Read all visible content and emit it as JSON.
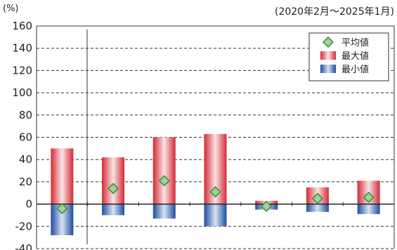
{
  "chart_data": {
    "type": "bar",
    "unit_label": "(%)",
    "period_label": "(2020年2月〜2025年1月)",
    "ylim": [
      -40,
      160
    ],
    "yticks": [
      160,
      140,
      120,
      100,
      80,
      60,
      40,
      20,
      0,
      -20,
      -40
    ],
    "grid": true,
    "legend_position": "top-right",
    "legend": {
      "avg": "平均値",
      "max": "最大値",
      "min": "最小値"
    },
    "categories": [
      "",
      "",
      "",
      "",
      "",
      "",
      ""
    ],
    "series": [
      {
        "name": "最大値",
        "values": [
          50,
          42,
          60,
          63,
          3,
          15,
          21
        ]
      },
      {
        "name": "最小値",
        "values": [
          -28,
          -10,
          -13,
          -20,
          -5,
          -7,
          -9
        ]
      },
      {
        "name": "平均値",
        "values": [
          -4,
          14,
          21,
          11,
          -2,
          5,
          6
        ]
      }
    ],
    "colors": {
      "max_edge": "#d42a34",
      "max_center": "#fbe4e6",
      "min_edge": "#1f4c9e",
      "min_center": "#d8e2f3",
      "avg_fill": "#9fd39a",
      "avg_stroke": "#3a8c3a"
    }
  }
}
